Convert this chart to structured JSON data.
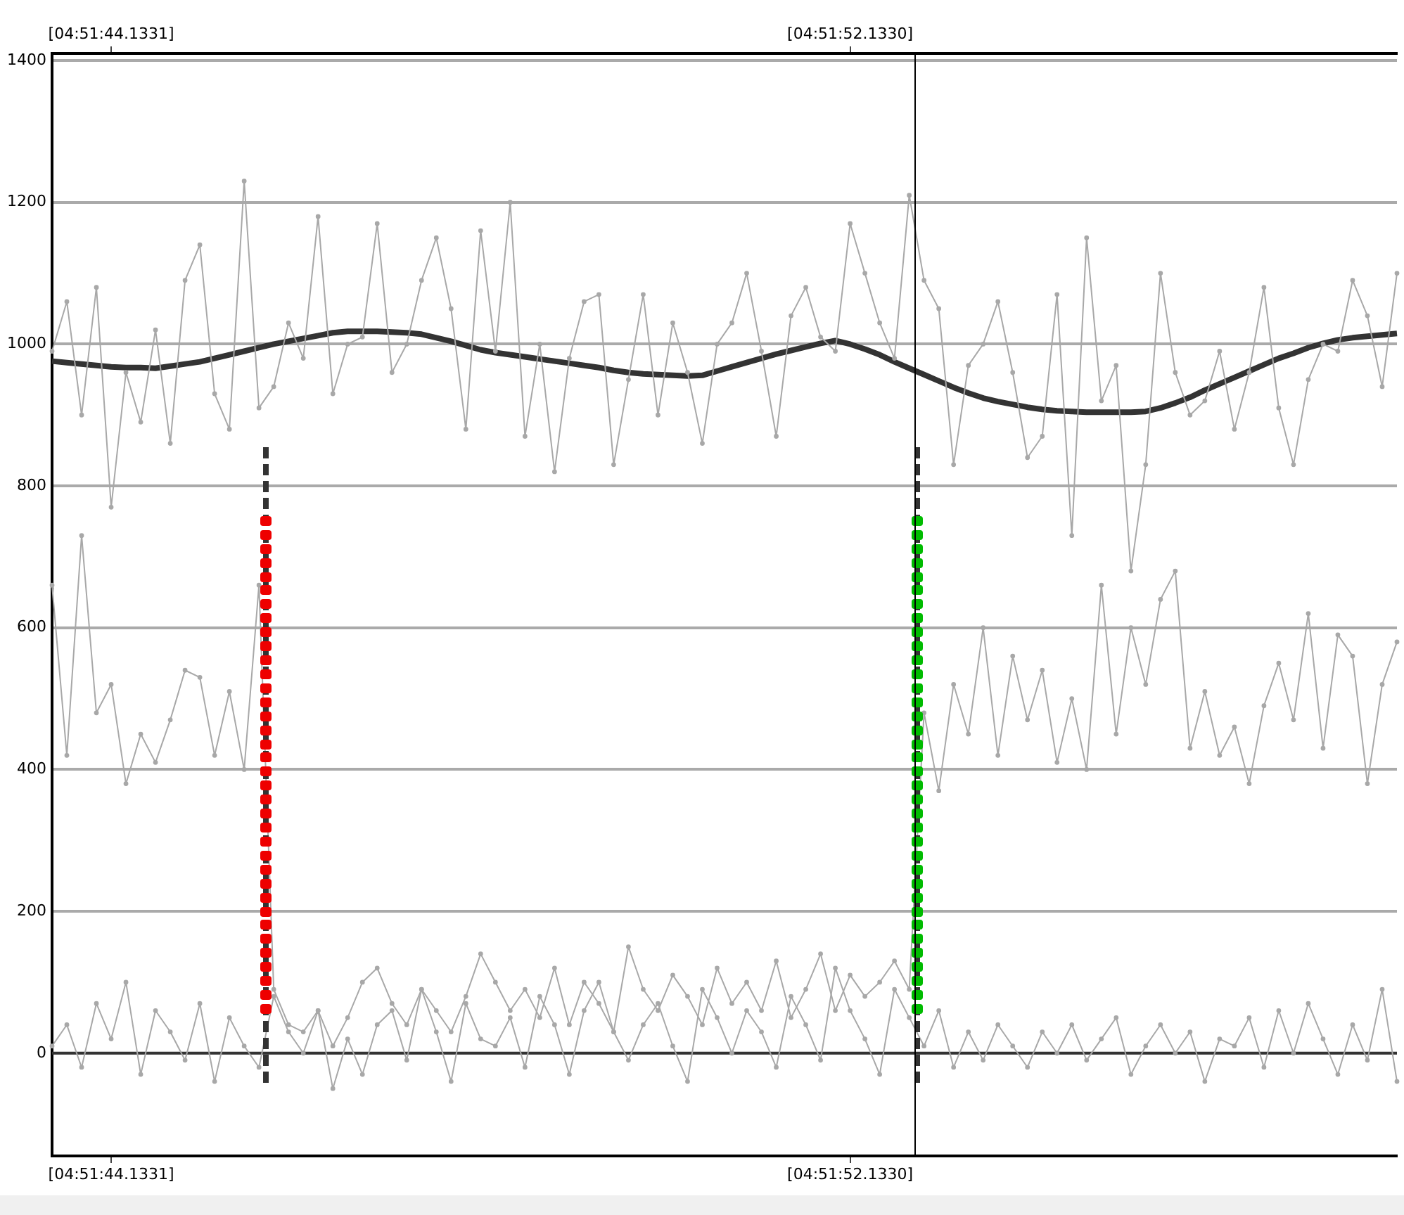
{
  "chart_data": {
    "type": "line",
    "categories": [
      null,
      null,
      null,
      null,
      "[04:51:44.1331]",
      null,
      null,
      null,
      null,
      null,
      null,
      null,
      null,
      null,
      null,
      null,
      null,
      null,
      null,
      null,
      null,
      null,
      null,
      null,
      null,
      null,
      null,
      null,
      null,
      null,
      null,
      null,
      null,
      null,
      null,
      null,
      null,
      null,
      null,
      null,
      null,
      null,
      null,
      null,
      null,
      null,
      null,
      null,
      null,
      null,
      null,
      null,
      null,
      null,
      "[04:51:52.1330]",
      null,
      null,
      null,
      null,
      null,
      null,
      null,
      null,
      null,
      null,
      null,
      null,
      null,
      null,
      null,
      null,
      null,
      null,
      null,
      null,
      null,
      null,
      null,
      null,
      null,
      null,
      null,
      null,
      null,
      null,
      null,
      null,
      null,
      null,
      null,
      null,
      null
    ],
    "series": [
      {
        "color": "#a8a8a8",
        "marker": "circle",
        "values": [
          990,
          1060,
          900,
          1080,
          770,
          960,
          890,
          1020,
          860,
          1090,
          1140,
          930,
          880,
          1230,
          910,
          940,
          1030,
          980,
          1180,
          930,
          1000,
          1010,
          1170,
          960,
          1000,
          1090,
          1150,
          1050,
          880,
          1160,
          990,
          1200,
          870,
          1000,
          820,
          980,
          1060,
          1070,
          830,
          950,
          1070,
          900,
          1030,
          960,
          860,
          1000,
          1030,
          1100,
          990,
          870,
          1040,
          1080,
          1010,
          990,
          1170,
          1100,
          1030,
          980,
          1210,
          1090,
          1050,
          830,
          970,
          1000,
          1060,
          960,
          840,
          870,
          1070,
          730,
          1150,
          920,
          970,
          680,
          830,
          1100,
          960,
          900,
          920,
          990,
          880,
          960,
          1080,
          910,
          830,
          950,
          1000,
          990,
          1090,
          1040,
          940,
          1100
        ]
      },
      {
        "color": "#a8a8a8",
        "marker": "circle",
        "values": [
          660,
          420,
          730,
          480,
          520,
          380,
          450,
          410,
          470,
          540,
          530,
          420,
          510,
          400,
          660,
          90,
          40,
          30,
          60,
          10,
          50,
          100,
          120,
          70,
          40,
          90,
          60,
          30,
          80,
          140,
          100,
          60,
          90,
          50,
          120,
          40,
          100,
          70,
          30,
          150,
          90,
          60,
          110,
          80,
          40,
          120,
          70,
          100,
          60,
          130,
          50,
          90,
          140,
          60,
          110,
          80,
          100,
          130,
          90,
          480,
          370,
          520,
          450,
          600,
          420,
          560,
          470,
          540,
          410,
          500,
          400,
          660,
          450,
          600,
          520,
          640,
          680,
          430,
          510,
          420,
          460,
          380,
          490,
          550,
          470,
          620,
          430,
          590,
          560,
          380,
          520,
          580
        ]
      },
      {
        "color": "#a8a8a8",
        "marker": "circle",
        "values": [
          10,
          40,
          -20,
          70,
          20,
          100,
          -30,
          60,
          30,
          -10,
          70,
          -40,
          50,
          10,
          -20,
          80,
          30,
          0,
          60,
          -50,
          20,
          -30,
          40,
          60,
          -10,
          90,
          30,
          -40,
          70,
          20,
          10,
          50,
          -20,
          80,
          40,
          -30,
          60,
          100,
          30,
          -10,
          40,
          70,
          10,
          -40,
          90,
          50,
          0,
          60,
          30,
          -20,
          80,
          40,
          -10,
          120,
          60,
          20,
          -30,
          90,
          50,
          10,
          60,
          -20,
          30,
          -10,
          40,
          10,
          -20,
          30,
          0,
          40,
          -10,
          20,
          50,
          -30,
          10,
          40,
          0,
          30,
          -40,
          20,
          10,
          50,
          -20,
          60,
          0,
          70,
          20,
          -30,
          40,
          -10,
          90,
          -40
        ]
      },
      {
        "color": "#333333",
        "marker": "none",
        "values": [
          976,
          974,
          972,
          970,
          968,
          967,
          967,
          966,
          969,
          972,
          975,
          980,
          985,
          990,
          995,
          1000,
          1004,
          1008,
          1012,
          1016,
          1018,
          1018,
          1018,
          1017,
          1016,
          1014,
          1009,
          1004,
          998,
          992,
          988,
          985,
          982,
          979,
          976,
          973,
          970,
          967,
          963,
          960,
          958,
          957,
          956,
          955,
          956,
          962,
          968,
          974,
          980,
          986,
          991,
          996,
          1001,
          1005,
          1000,
          993,
          985,
          975,
          966,
          957,
          948,
          939,
          931,
          924,
          919,
          915,
          911,
          908,
          906,
          905,
          904,
          904,
          904,
          904,
          905,
          910,
          917,
          925,
          935,
          944,
          953,
          962,
          971,
          980,
          987,
          995,
          1001,
          1006,
          1009,
          1011,
          1013,
          1015
        ]
      }
    ],
    "ylim": [
      -145,
      1410
    ],
    "yticks": [
      0,
      200,
      400,
      600,
      800,
      1000,
      1200,
      1400
    ],
    "ref_lines": [
      {
        "axis": "y",
        "value": 0,
        "color": "#333333"
      }
    ],
    "grid": "y",
    "legend": false
  }
}
